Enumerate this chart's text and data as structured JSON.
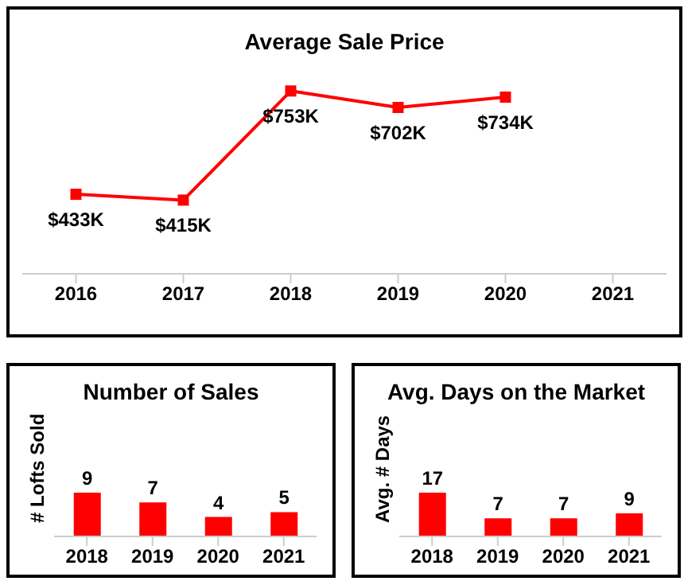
{
  "chart_data": [
    {
      "type": "line",
      "title": "Average Sale Price",
      "categories": [
        "2016",
        "2017",
        "2018",
        "2019",
        "2020",
        "2021"
      ],
      "marker": "square",
      "series": [
        {
          "color": "#ff0000",
          "values": [
            433,
            415,
            753,
            702,
            734,
            null
          ],
          "value_labels": [
            "$433K",
            "$415K",
            "$753K",
            "$702K",
            "$734K",
            null
          ]
        }
      ]
    },
    {
      "type": "bar",
      "title": "Number of Sales",
      "ylabel": "# Lofts Sold",
      "categories": [
        "2018",
        "2019",
        "2020",
        "2021"
      ],
      "values": [
        9,
        7,
        4,
        5
      ],
      "color": "#ff0000",
      "data_labels": true
    },
    {
      "type": "bar",
      "title": "Avg. Days on the Market",
      "ylabel": "Avg. # Days",
      "categories": [
        "2018",
        "2019",
        "2020",
        "2021"
      ],
      "values": [
        17,
        7,
        7,
        9
      ],
      "color": "#ff0000",
      "data_labels": true
    }
  ]
}
